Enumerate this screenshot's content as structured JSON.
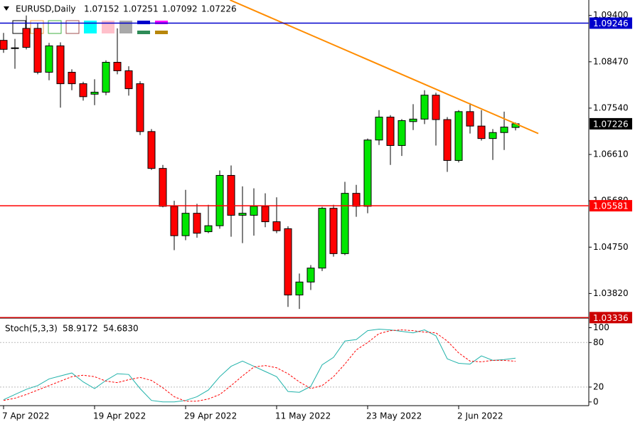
{
  "chart_data": [
    {
      "type": "candlestick",
      "title": "EURUSD,Daily",
      "categories": [
        "7 Apr 2022",
        null,
        null,
        null,
        null,
        null,
        null,
        null,
        "19 Apr 2022",
        null,
        null,
        null,
        null,
        null,
        null,
        null,
        "29 Apr 2022",
        null,
        null,
        null,
        null,
        null,
        null,
        null,
        "11 May 2022",
        null,
        null,
        null,
        null,
        null,
        null,
        null,
        "23 May 2022",
        null,
        null,
        null,
        null,
        null,
        null,
        null,
        "2 Jun 2022",
        null,
        null,
        null,
        null,
        null
      ],
      "open": [
        1.089,
        1.0875,
        1.0914,
        1.0914,
        1.0826,
        1.0879,
        1.0826,
        1.0803,
        1.0782,
        1.0786,
        1.0846,
        1.0829,
        1.0803,
        1.0707,
        1.0633,
        1.0557,
        1.0498,
        1.0543,
        1.0506,
        1.0518,
        1.0619,
        1.0539,
        1.0539,
        1.0557,
        1.0526,
        1.0512,
        1.0379,
        1.0405,
        1.0433,
        1.0553,
        1.0462,
        1.0583,
        1.0557,
        1.069,
        1.0736,
        1.0679,
        1.0727,
        1.0732,
        1.078,
        1.0731,
        1.0649,
        1.0747,
        1.0718,
        1.0693,
        1.0705,
        1.07152
      ],
      "high": [
        1.0905,
        1.0893,
        1.094,
        1.0925,
        1.0885,
        1.0886,
        1.0832,
        1.0807,
        1.0812,
        1.085,
        1.0914,
        1.0838,
        1.0808,
        1.0712,
        1.064,
        1.0568,
        1.059,
        1.0562,
        1.056,
        1.0629,
        1.0639,
        1.0597,
        1.0593,
        1.0583,
        1.0575,
        1.0517,
        1.0422,
        1.0439,
        1.0556,
        1.056,
        1.0606,
        1.06,
        1.0693,
        1.075,
        1.074,
        1.0732,
        1.0762,
        1.079,
        1.0785,
        1.0736,
        1.075,
        1.0764,
        1.075,
        1.0712,
        1.0747,
        1.07251
      ],
      "low": [
        1.0865,
        1.0833,
        1.0872,
        1.0822,
        1.081,
        1.0755,
        1.079,
        1.0769,
        1.076,
        1.078,
        1.0822,
        1.0779,
        1.07,
        1.063,
        1.0555,
        1.0469,
        1.0489,
        1.0494,
        1.0503,
        1.0512,
        1.0496,
        1.0483,
        1.0498,
        1.0515,
        1.0503,
        1.0355,
        1.0351,
        1.0389,
        1.0427,
        1.0456,
        1.0459,
        1.0536,
        1.0543,
        1.068,
        1.064,
        1.0658,
        1.071,
        1.0722,
        1.0679,
        1.0626,
        1.0645,
        1.0703,
        1.0689,
        1.065,
        1.067,
        1.07092
      ],
      "close": [
        1.0872,
        1.0874,
        1.0876,
        1.0826,
        1.0879,
        1.0803,
        1.0803,
        1.0777,
        1.0786,
        1.0846,
        1.0829,
        1.0793,
        1.0707,
        1.0633,
        1.0557,
        1.0498,
        1.0543,
        1.0503,
        1.0518,
        1.0619,
        1.0539,
        1.0543,
        1.0557,
        1.0526,
        1.0508,
        1.0379,
        1.0405,
        1.0433,
        1.0553,
        1.0462,
        1.0583,
        1.0557,
        1.069,
        1.0736,
        1.0679,
        1.0729,
        1.0732,
        1.078,
        1.0731,
        1.0649,
        1.0747,
        1.0718,
        1.0693,
        1.0705,
        1.0716,
        1.07226
      ],
      "up_color": "#00e600",
      "down_color": "#ff0000",
      "ylim": [
        1.0334,
        1.0971
      ],
      "yticks": [
        {
          "value": 1.094,
          "label": "1.09400"
        },
        {
          "value": 1.0847,
          "label": "1.08470"
        },
        {
          "value": 1.0754,
          "label": "1.07540"
        },
        {
          "value": 1.0661,
          "label": "1.06610"
        },
        {
          "value": 1.0568,
          "label": "1.05680"
        },
        {
          "value": 1.0475,
          "label": "1.04750"
        },
        {
          "value": 1.0382,
          "label": "1.03820"
        }
      ],
      "hlines": [
        {
          "value": 1.09246,
          "color": "#0000cc"
        },
        {
          "value": 1.05581,
          "color": "#ff0000"
        },
        {
          "value": 1.03336,
          "color": "#cc0000"
        }
      ],
      "trendlines": [
        {
          "color": "#ff8c00",
          "x": [
            19.9,
            47
          ],
          "y": [
            1.0971,
            1.0703
          ]
        }
      ]
    },
    {
      "type": "line",
      "title": "Stoch(5,3,3)",
      "series": [
        {
          "color": "#20b2aa",
          "dash": false,
          "values": [
            3,
            10,
            17,
            22,
            31,
            35,
            39,
            27,
            18,
            29,
            38,
            37,
            18,
            2,
            0,
            0,
            2,
            7,
            16,
            34,
            48,
            55,
            48,
            41,
            34,
            14,
            13,
            21,
            50,
            60,
            82,
            84,
            96,
            98,
            97,
            95,
            93,
            97,
            89,
            58,
            52,
            51,
            62,
            56,
            57,
            58.9172
          ]
        },
        {
          "color": "#ff0000",
          "dash": true,
          "values": [
            2,
            5,
            10,
            16,
            22,
            28,
            34,
            36,
            34,
            28,
            26,
            30,
            33,
            29,
            19,
            7,
            1,
            1,
            4,
            10,
            22,
            35,
            47,
            49,
            46,
            38,
            27,
            18,
            22,
            34,
            51,
            70,
            80,
            92,
            96,
            97,
            96,
            94,
            93,
            82,
            66,
            55,
            54,
            56,
            56,
            54.683
          ],
          "value_labels": [
            null,
            null,
            null,
            null,
            null,
            null,
            null,
            null,
            null,
            null,
            null,
            null,
            null,
            null,
            null,
            null,
            null,
            null,
            null,
            null,
            null,
            null,
            null,
            null,
            null,
            null,
            null,
            null,
            null,
            null,
            null,
            null,
            null,
            null,
            null,
            null,
            null,
            null,
            null,
            null,
            null,
            null,
            null,
            null,
            null,
            "54.6830"
          ]
        }
      ],
      "ylim": [
        -5,
        110
      ],
      "yticks": [
        100,
        80,
        20,
        0
      ],
      "levels": [
        80,
        20
      ]
    }
  ]
}
